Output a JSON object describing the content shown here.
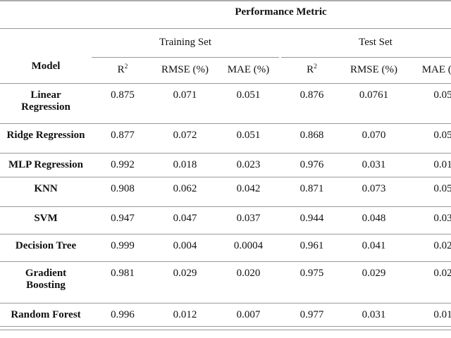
{
  "table": {
    "title": "Performance Metric",
    "model_header": "Model",
    "groups": [
      {
        "label": "Training Set"
      },
      {
        "label": "Test Set"
      }
    ],
    "metric_cols": [
      {
        "base": "R",
        "sup": "2"
      },
      {
        "label": "RMSE (%)"
      },
      {
        "label": "MAE (%)"
      },
      {
        "base": "R",
        "sup": "2"
      },
      {
        "label": "RMSE (%)"
      },
      {
        "label": "MAE (%)"
      }
    ],
    "rows": [
      {
        "model": "Linear\nRegression",
        "values": [
          "0.875",
          "0.071",
          "0.051",
          "0.876",
          "0.0761",
          "0.05"
        ]
      },
      {
        "model": "Ridge Regression",
        "values": [
          "0.877",
          "0.072",
          "0.051",
          "0.868",
          "0.070",
          "0.05"
        ]
      },
      {
        "model": "MLP Regression",
        "values": [
          "0.992",
          "0.018",
          "0.023",
          "0.976",
          "0.031",
          "0.01"
        ]
      },
      {
        "model": "KNN",
        "values": [
          "0.908",
          "0.062",
          "0.042",
          "0.871",
          "0.073",
          "0.05"
        ]
      },
      {
        "model": "SVM",
        "values": [
          "0.947",
          "0.047",
          "0.037",
          "0.944",
          "0.048",
          "0.03"
        ]
      },
      {
        "model": "Decision Tree",
        "values": [
          "0.999",
          "0.004",
          "0.0004",
          "0.961",
          "0.041",
          "0.02"
        ]
      },
      {
        "model": "Gradient\nBoosting",
        "values": [
          "0.981",
          "0.029",
          "0.020",
          "0.975",
          "0.029",
          "0.02"
        ]
      },
      {
        "model": "Random Forest",
        "values": [
          "0.996",
          "0.012",
          "0.007",
          "0.977",
          "0.031",
          "0.01"
        ]
      }
    ],
    "colors": {
      "background": "#ffffff",
      "text": "#111111",
      "rule": "#999999",
      "rule_top": "#ababab"
    }
  }
}
